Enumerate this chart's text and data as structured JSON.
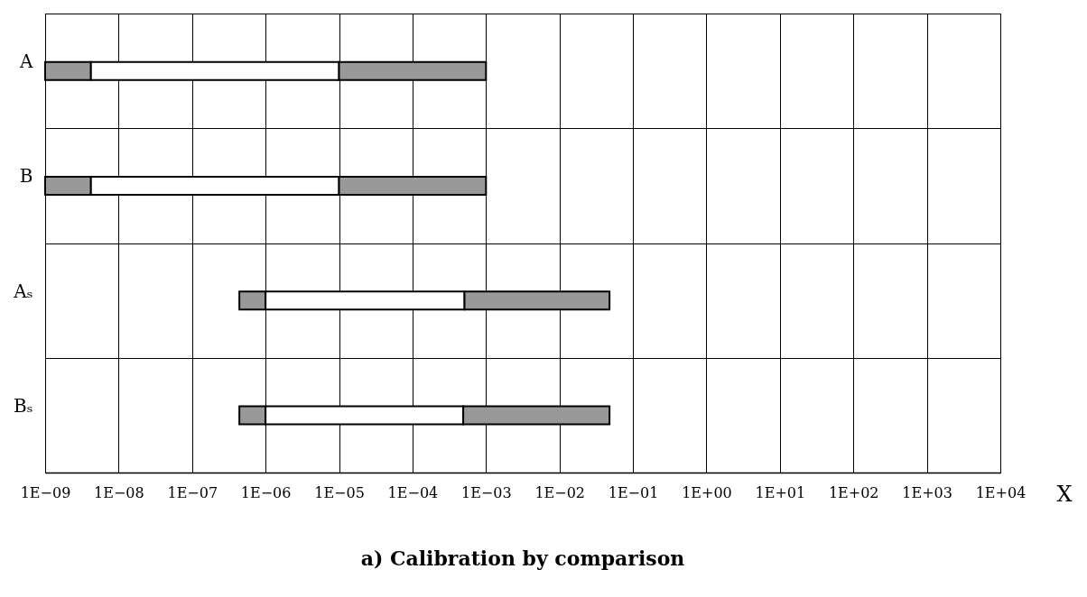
{
  "chart_data": {
    "type": "bar",
    "orientation": "horizontal",
    "title": "a) Calibration by comparison",
    "xlabel": "X",
    "categories": [
      "A",
      "B",
      "Aₛ",
      "Bₛ"
    ],
    "series": [
      {
        "color": "#999999",
        "base": [
          1e-09,
          1e-09,
          4.4e-07,
          4.4e-07
        ],
        "values": [
          3.2e-09,
          3.2e-09,
          5.6e-07,
          5.6e-07
        ]
      },
      {
        "color": "#ffffff",
        "base": [
          4.2e-09,
          4.2e-09,
          1e-06,
          1e-06
        ],
        "values": [
          9.9958e-06,
          9.9958e-06,
          0.000509,
          0.000489
        ]
      },
      {
        "color": "#999999",
        "base": [
          1e-05,
          1e-05,
          0.00051,
          0.00049
        ],
        "values": [
          0.00099,
          0.00099,
          0.04749,
          0.04751
        ]
      }
    ],
    "log": "x",
    "xlim": [
      1e-09,
      10000.0
    ],
    "xticks": [
      {
        "value": 1e-09,
        "label": "1E−09"
      },
      {
        "value": 1e-08,
        "label": "1E−08"
      },
      {
        "value": 1e-07,
        "label": "1E−07"
      },
      {
        "value": 1e-06,
        "label": "1E−06"
      },
      {
        "value": 1e-05,
        "label": "1E−05"
      },
      {
        "value": 0.0001,
        "label": "1E−04"
      },
      {
        "value": 0.001,
        "label": "1E−03"
      },
      {
        "value": 0.01,
        "label": "1E−02"
      },
      {
        "value": 0.1,
        "label": "1E−01"
      },
      {
        "value": 1,
        "label": "1E+00"
      },
      {
        "value": 10,
        "label": "1E+01"
      },
      {
        "value": 100,
        "label": "1E+02"
      },
      {
        "value": 1000,
        "label": "1E+03"
      },
      {
        "value": 10000,
        "label": "1E+04"
      }
    ],
    "grid": true,
    "legend": false
  }
}
